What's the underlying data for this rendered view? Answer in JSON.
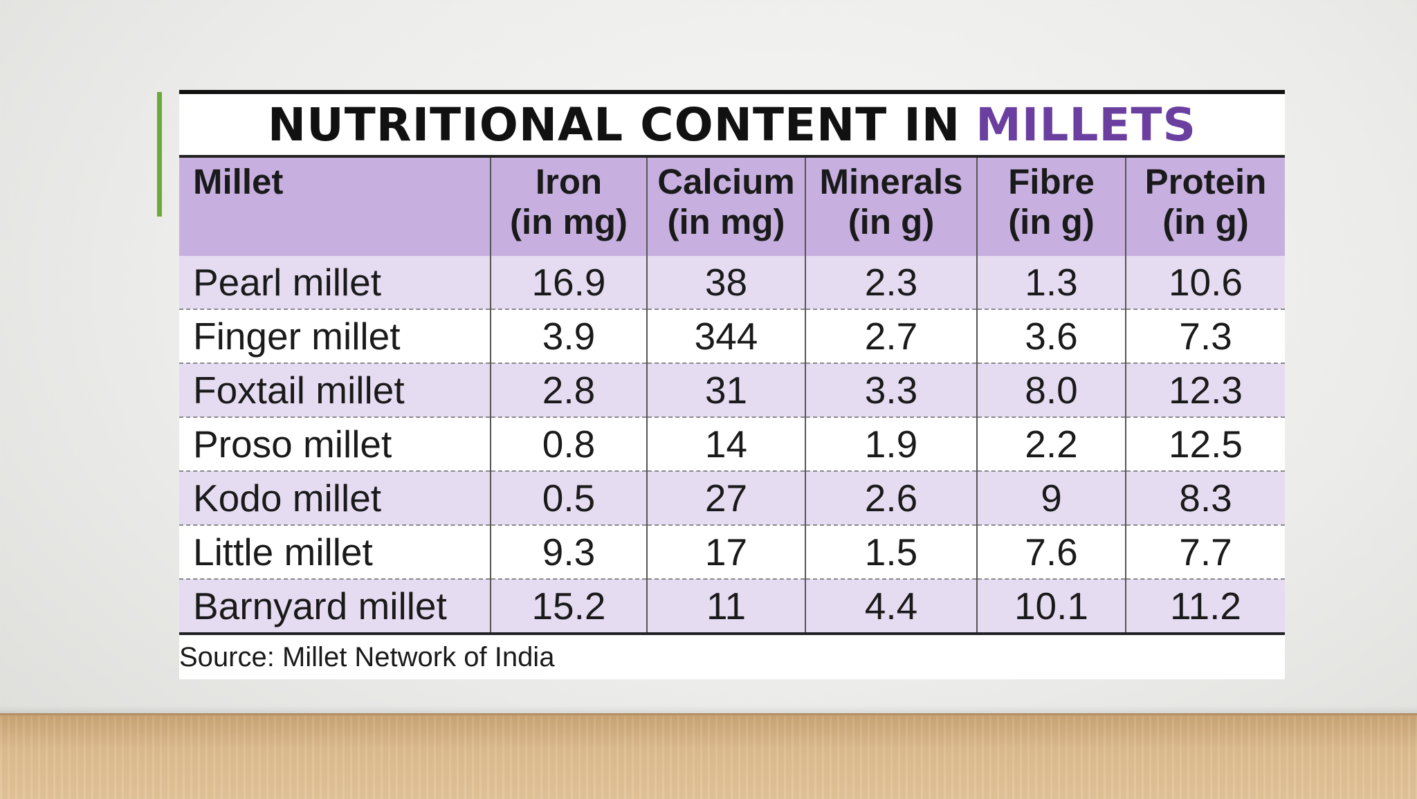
{
  "title": {
    "main": "NUTRITIONAL CONTENT IN",
    "accent": "MILLETS"
  },
  "colors": {
    "header_bg": "#c7b0e0",
    "row_tint": "#e6dcf2",
    "title_accent": "#6b3fa0",
    "slide_accent_bar": "#6aaa3a"
  },
  "table": {
    "headers": [
      {
        "line1": "Millet",
        "line2": ""
      },
      {
        "line1": "Iron",
        "line2": "(in mg)"
      },
      {
        "line1": "Calcium",
        "line2": "(in mg)"
      },
      {
        "line1": "Minerals",
        "line2": "(in g)"
      },
      {
        "line1": "Fibre",
        "line2": "(in g)"
      },
      {
        "line1": "Protein",
        "line2": "(in g)"
      }
    ],
    "rows": [
      [
        "Pearl millet",
        "16.9",
        "38",
        "2.3",
        "1.3",
        "10.6"
      ],
      [
        "Finger millet",
        "3.9",
        "344",
        "2.7",
        "3.6",
        "7.3"
      ],
      [
        "Foxtail millet",
        "2.8",
        "31",
        "3.3",
        "8.0",
        "12.3"
      ],
      [
        "Proso millet",
        "0.8",
        "14",
        "1.9",
        "2.2",
        "12.5"
      ],
      [
        "Kodo millet",
        "0.5",
        "27",
        "2.6",
        "9",
        "8.3"
      ],
      [
        "Little millet",
        "9.3",
        "17",
        "1.5",
        "7.6",
        "7.7"
      ],
      [
        "Barnyard millet",
        "15.2",
        "11",
        "4.4",
        "10.1",
        "11.2"
      ]
    ]
  },
  "source": "Source: Millet Network of India"
}
